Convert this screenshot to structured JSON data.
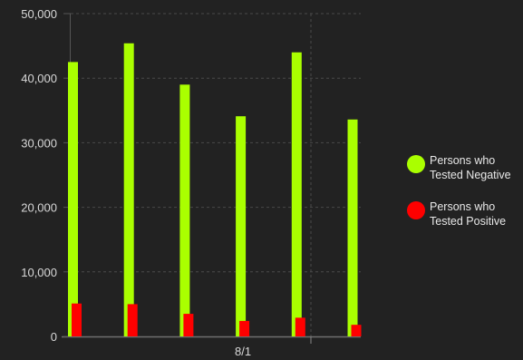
{
  "chart_data": {
    "type": "bar",
    "categories": [
      "",
      "",
      "",
      "8/1",
      "",
      ""
    ],
    "series": [
      {
        "name": "Persons who Tested Negative",
        "legend_lines": [
          "Persons who",
          "Tested Negative"
        ],
        "color": "#aaff00",
        "values": [
          42500,
          45400,
          39000,
          34100,
          44000,
          33600
        ]
      },
      {
        "name": "Persons who Tested Positive",
        "legend_lines": [
          "Persons who",
          "Tested Positive"
        ],
        "color": "#ff0000",
        "values": [
          5100,
          5000,
          3500,
          2400,
          2900,
          1800
        ]
      }
    ],
    "y_ticks": [
      0,
      10000,
      20000,
      30000,
      40000,
      50000
    ],
    "y_tick_labels": [
      "0",
      "10,000",
      "20,000",
      "30,000",
      "40,000",
      "50,000"
    ],
    "ylim": [
      0,
      50000
    ],
    "grid": true,
    "legend_position": "right",
    "background": "#222222"
  }
}
